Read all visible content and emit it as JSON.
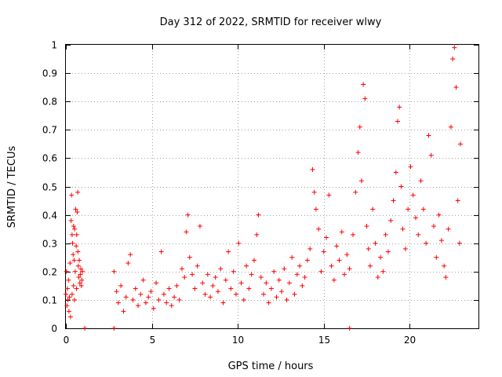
{
  "chart_data": {
    "type": "scatter",
    "title": "Day 312 of 2022, SRMTID for receiver wlwy",
    "xlabel": "GPS time / hours",
    "ylabel": "SRMTID / TECUs",
    "xlim": [
      0,
      24
    ],
    "ylim": [
      0,
      1
    ],
    "xticks": [
      0,
      5,
      10,
      15,
      20
    ],
    "yticks": [
      0,
      0.1,
      0.2,
      0.3,
      0.4,
      0.5,
      0.6,
      0.7,
      0.8,
      0.9,
      1
    ],
    "xtick_labels": [
      "0",
      "5",
      "10",
      "15",
      "20"
    ],
    "ytick_labels": [
      "0",
      "0.1",
      "0.2",
      "0.3",
      "0.4",
      "0.5",
      "0.6",
      "0.7",
      "0.8",
      "0.9",
      "1"
    ],
    "grid": true,
    "marker": "+",
    "color": "#ff0000",
    "series": [
      {
        "name": "SRMTID",
        "points": [
          [
            0.0,
            0.12
          ],
          [
            0.03,
            0.2
          ],
          [
            0.06,
            0.08
          ],
          [
            0.09,
            0.14
          ],
          [
            0.12,
            0.1
          ],
          [
            0.15,
            0.17
          ],
          [
            0.18,
            0.06
          ],
          [
            0.21,
            0.11
          ],
          [
            0.24,
            0.23
          ],
          [
            0.27,
            0.04
          ],
          [
            0.3,
            0.38
          ],
          [
            0.33,
            0.47
          ],
          [
            0.36,
            0.33
          ],
          [
            0.39,
            0.3
          ],
          [
            0.42,
            0.26
          ],
          [
            0.45,
            0.36
          ],
          [
            0.48,
            0.24
          ],
          [
            0.51,
            0.35
          ],
          [
            0.54,
            0.2
          ],
          [
            0.57,
            0.42
          ],
          [
            0.6,
            0.29
          ],
          [
            0.63,
            0.33
          ],
          [
            0.66,
            0.41
          ],
          [
            0.69,
            0.48
          ],
          [
            0.72,
            0.22
          ],
          [
            0.75,
            0.18
          ],
          [
            0.78,
            0.24
          ],
          [
            0.81,
            0.16
          ],
          [
            0.84,
            0.19
          ],
          [
            0.87,
            0.21
          ],
          [
            0.9,
            0.15
          ],
          [
            0.93,
            0.17
          ],
          [
            0.96,
            0.2
          ],
          [
            0.5,
            0.1
          ],
          [
            0.62,
            0.14
          ],
          [
            0.7,
            0.27
          ],
          [
            0.44,
            0.15
          ],
          [
            0.36,
            0.12
          ],
          [
            1.1,
            0.0
          ],
          [
            2.8,
            0.0
          ],
          [
            16.5,
            0.0
          ],
          [
            2.8,
            0.2
          ],
          [
            2.95,
            0.13
          ],
          [
            3.05,
            0.09
          ],
          [
            3.2,
            0.15
          ],
          [
            3.35,
            0.06
          ],
          [
            3.5,
            0.11
          ],
          [
            3.62,
            0.23
          ],
          [
            3.75,
            0.26
          ],
          [
            3.9,
            0.1
          ],
          [
            4.05,
            0.14
          ],
          [
            4.2,
            0.08
          ],
          [
            4.35,
            0.12
          ],
          [
            4.5,
            0.17
          ],
          [
            4.65,
            0.09
          ],
          [
            4.8,
            0.11
          ],
          [
            4.95,
            0.13
          ],
          [
            5.1,
            0.07
          ],
          [
            5.25,
            0.16
          ],
          [
            5.4,
            0.1
          ],
          [
            5.55,
            0.27
          ],
          [
            5.7,
            0.12
          ],
          [
            5.85,
            0.09
          ],
          [
            6.0,
            0.14
          ],
          [
            6.15,
            0.08
          ],
          [
            6.3,
            0.11
          ],
          [
            6.45,
            0.15
          ],
          [
            6.6,
            0.1
          ],
          [
            6.75,
            0.21
          ],
          [
            6.9,
            0.18
          ],
          [
            7.0,
            0.34
          ],
          [
            7.1,
            0.4
          ],
          [
            7.2,
            0.25
          ],
          [
            7.35,
            0.19
          ],
          [
            7.5,
            0.14
          ],
          [
            7.65,
            0.22
          ],
          [
            7.8,
            0.36
          ],
          [
            7.95,
            0.16
          ],
          [
            8.1,
            0.12
          ],
          [
            8.25,
            0.19
          ],
          [
            8.4,
            0.11
          ],
          [
            8.55,
            0.15
          ],
          [
            8.7,
            0.18
          ],
          [
            8.85,
            0.13
          ],
          [
            9.0,
            0.21
          ],
          [
            9.15,
            0.09
          ],
          [
            9.3,
            0.17
          ],
          [
            9.45,
            0.27
          ],
          [
            9.6,
            0.14
          ],
          [
            9.75,
            0.2
          ],
          [
            9.9,
            0.12
          ],
          [
            10.05,
            0.3
          ],
          [
            10.2,
            0.16
          ],
          [
            10.35,
            0.1
          ],
          [
            10.5,
            0.22
          ],
          [
            10.65,
            0.14
          ],
          [
            10.8,
            0.19
          ],
          [
            10.95,
            0.24
          ],
          [
            11.1,
            0.33
          ],
          [
            11.2,
            0.4
          ],
          [
            11.35,
            0.18
          ],
          [
            11.5,
            0.12
          ],
          [
            11.65,
            0.16
          ],
          [
            11.8,
            0.09
          ],
          [
            11.95,
            0.14
          ],
          [
            12.1,
            0.2
          ],
          [
            12.25,
            0.11
          ],
          [
            12.4,
            0.17
          ],
          [
            12.55,
            0.13
          ],
          [
            12.7,
            0.21
          ],
          [
            12.85,
            0.1
          ],
          [
            13.0,
            0.16
          ],
          [
            13.15,
            0.25
          ],
          [
            13.3,
            0.12
          ],
          [
            13.45,
            0.19
          ],
          [
            13.6,
            0.22
          ],
          [
            13.75,
            0.15
          ],
          [
            13.9,
            0.18
          ],
          [
            14.05,
            0.24
          ],
          [
            14.2,
            0.28
          ],
          [
            14.35,
            0.56
          ],
          [
            14.45,
            0.48
          ],
          [
            14.55,
            0.42
          ],
          [
            14.7,
            0.35
          ],
          [
            14.85,
            0.2
          ],
          [
            15.0,
            0.27
          ],
          [
            15.15,
            0.32
          ],
          [
            15.3,
            0.47
          ],
          [
            15.45,
            0.22
          ],
          [
            15.6,
            0.17
          ],
          [
            15.75,
            0.29
          ],
          [
            15.9,
            0.24
          ],
          [
            16.05,
            0.34
          ],
          [
            16.2,
            0.19
          ],
          [
            16.35,
            0.26
          ],
          [
            16.5,
            0.21
          ],
          [
            16.7,
            0.33
          ],
          [
            16.85,
            0.48
          ],
          [
            17.0,
            0.62
          ],
          [
            17.1,
            0.71
          ],
          [
            17.2,
            0.52
          ],
          [
            17.3,
            0.86
          ],
          [
            17.4,
            0.81
          ],
          [
            17.5,
            0.36
          ],
          [
            17.6,
            0.28
          ],
          [
            17.7,
            0.22
          ],
          [
            17.85,
            0.42
          ],
          [
            18.0,
            0.3
          ],
          [
            18.15,
            0.18
          ],
          [
            18.3,
            0.25
          ],
          [
            18.45,
            0.2
          ],
          [
            18.6,
            0.33
          ],
          [
            18.75,
            0.27
          ],
          [
            18.9,
            0.38
          ],
          [
            19.05,
            0.45
          ],
          [
            19.2,
            0.55
          ],
          [
            19.3,
            0.73
          ],
          [
            19.4,
            0.78
          ],
          [
            19.5,
            0.5
          ],
          [
            19.6,
            0.35
          ],
          [
            19.75,
            0.28
          ],
          [
            19.9,
            0.42
          ],
          [
            20.05,
            0.57
          ],
          [
            20.2,
            0.47
          ],
          [
            20.35,
            0.39
          ],
          [
            20.5,
            0.33
          ],
          [
            20.65,
            0.52
          ],
          [
            20.8,
            0.42
          ],
          [
            20.95,
            0.3
          ],
          [
            21.1,
            0.68
          ],
          [
            21.25,
            0.61
          ],
          [
            21.4,
            0.36
          ],
          [
            21.55,
            0.25
          ],
          [
            21.7,
            0.4
          ],
          [
            21.85,
            0.31
          ],
          [
            22.0,
            0.22
          ],
          [
            22.1,
            0.18
          ],
          [
            22.25,
            0.35
          ],
          [
            22.4,
            0.71
          ],
          [
            22.5,
            0.95
          ],
          [
            22.6,
            0.99
          ],
          [
            22.7,
            0.85
          ],
          [
            22.8,
            0.45
          ],
          [
            22.9,
            0.3
          ],
          [
            22.95,
            0.65
          ]
        ]
      }
    ]
  }
}
